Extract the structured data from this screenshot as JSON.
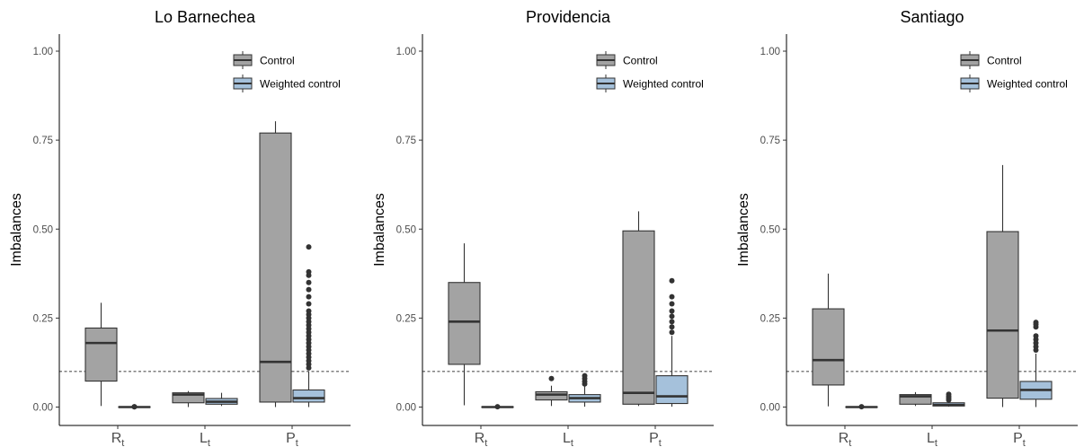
{
  "chart_data": [
    {
      "type": "boxplot",
      "title": "Lo Barnechea",
      "ylabel": "Imbalances",
      "ylim": [
        0,
        1.05
      ],
      "yticks": [
        "0.00",
        "0.25",
        "0.50",
        "0.75",
        "1.00"
      ],
      "reference_line": 0.1,
      "categories": [
        {
          "main": "R",
          "sub": "t"
        },
        {
          "main": "L",
          "sub": "t"
        },
        {
          "main": "P",
          "sub": "t"
        }
      ],
      "legend": [
        "Control",
        "Weighted control"
      ],
      "series": [
        {
          "name": "Control",
          "boxes": [
            {
              "min": 0.003,
              "q1": 0.073,
              "median": 0.18,
              "q3": 0.222,
              "max": 0.293,
              "outliers": []
            },
            {
              "min": 0.0,
              "q1": 0.012,
              "median": 0.035,
              "q3": 0.04,
              "max": 0.045,
              "outliers": []
            },
            {
              "min": 0.0,
              "q1": 0.014,
              "median": 0.127,
              "q3": 0.77,
              "max": 0.803,
              "outliers": []
            }
          ]
        },
        {
          "name": "Weighted control",
          "boxes": [
            {
              "min": 0.0,
              "q1": 0.0,
              "median": 0.0,
              "q3": 0.001,
              "max": 0.001,
              "outliers": [
                0.001,
                0.0005
              ]
            },
            {
              "min": 0.003,
              "q1": 0.008,
              "median": 0.015,
              "q3": 0.024,
              "max": 0.04,
              "outliers": []
            },
            {
              "min": 0.0,
              "q1": 0.014,
              "median": 0.025,
              "q3": 0.048,
              "max": 0.1,
              "outliers": [
                0.11,
                0.12,
                0.13,
                0.14,
                0.15,
                0.16,
                0.17,
                0.18,
                0.19,
                0.2,
                0.21,
                0.22,
                0.23,
                0.24,
                0.25,
                0.26,
                0.27,
                0.29,
                0.31,
                0.33,
                0.35,
                0.37,
                0.38,
                0.45
              ]
            }
          ]
        }
      ]
    },
    {
      "type": "boxplot",
      "title": "Providencia",
      "ylabel": "Imbalances",
      "ylim": [
        0,
        1.05
      ],
      "yticks": [
        "0.00",
        "0.25",
        "0.50",
        "0.75",
        "1.00"
      ],
      "reference_line": 0.1,
      "categories": [
        {
          "main": "R",
          "sub": "t"
        },
        {
          "main": "L",
          "sub": "t"
        },
        {
          "main": "P",
          "sub": "t"
        }
      ],
      "legend": [
        "Control",
        "Weighted control"
      ],
      "series": [
        {
          "name": "Control",
          "boxes": [
            {
              "min": 0.005,
              "q1": 0.12,
              "median": 0.24,
              "q3": 0.35,
              "max": 0.46,
              "outliers": []
            },
            {
              "min": 0.003,
              "q1": 0.02,
              "median": 0.035,
              "q3": 0.043,
              "max": 0.06,
              "outliers": [
                0.08
              ]
            },
            {
              "min": 0.003,
              "q1": 0.008,
              "median": 0.04,
              "q3": 0.495,
              "max": 0.55,
              "outliers": []
            }
          ]
        },
        {
          "name": "Weighted control",
          "boxes": [
            {
              "min": 0.0,
              "q1": 0.0,
              "median": 0.0,
              "q3": 0.001,
              "max": 0.001,
              "outliers": [
                0.001
              ]
            },
            {
              "min": 0.001,
              "q1": 0.014,
              "median": 0.025,
              "q3": 0.035,
              "max": 0.06,
              "outliers": [
                0.065,
                0.072,
                0.08,
                0.088
              ]
            },
            {
              "min": 0.001,
              "q1": 0.01,
              "median": 0.03,
              "q3": 0.088,
              "max": 0.2,
              "outliers": [
                0.21,
                0.225,
                0.24,
                0.255,
                0.27,
                0.29,
                0.31,
                0.355
              ]
            }
          ]
        }
      ]
    },
    {
      "type": "boxplot",
      "title": "Santiago",
      "ylabel": "Imbalances",
      "ylim": [
        0,
        1.05
      ],
      "yticks": [
        "0.00",
        "0.25",
        "0.50",
        "0.75",
        "1.00"
      ],
      "reference_line": 0.1,
      "categories": [
        {
          "main": "R",
          "sub": "t"
        },
        {
          "main": "L",
          "sub": "t"
        },
        {
          "main": "P",
          "sub": "t"
        }
      ],
      "legend": [
        "Control",
        "Weighted control"
      ],
      "series": [
        {
          "name": "Control",
          "boxes": [
            {
              "min": 0.002,
              "q1": 0.062,
              "median": 0.132,
              "q3": 0.276,
              "max": 0.375,
              "outliers": []
            },
            {
              "min": 0.003,
              "q1": 0.008,
              "median": 0.03,
              "q3": 0.035,
              "max": 0.042,
              "outliers": []
            },
            {
              "min": 0.0,
              "q1": 0.025,
              "median": 0.215,
              "q3": 0.493,
              "max": 0.68,
              "outliers": []
            }
          ]
        },
        {
          "name": "Weighted control",
          "boxes": [
            {
              "min": 0.0,
              "q1": 0.0,
              "median": 0.0,
              "q3": 0.001,
              "max": 0.001,
              "outliers": [
                0.001
              ]
            },
            {
              "min": 0.001,
              "q1": 0.003,
              "median": 0.006,
              "q3": 0.012,
              "max": 0.018,
              "outliers": [
                0.02,
                0.025,
                0.03,
                0.036
              ]
            },
            {
              "min": 0.0,
              "q1": 0.022,
              "median": 0.048,
              "q3": 0.072,
              "max": 0.15,
              "outliers": [
                0.16,
                0.17,
                0.18,
                0.19,
                0.2,
                0.225,
                0.232,
                0.238
              ]
            }
          ]
        }
      ]
    }
  ],
  "colors": {
    "control": "#a3a3a3",
    "weighted": "#a5c1db",
    "outline": "#333333",
    "axis": "#000000",
    "outlier": "#333333"
  }
}
